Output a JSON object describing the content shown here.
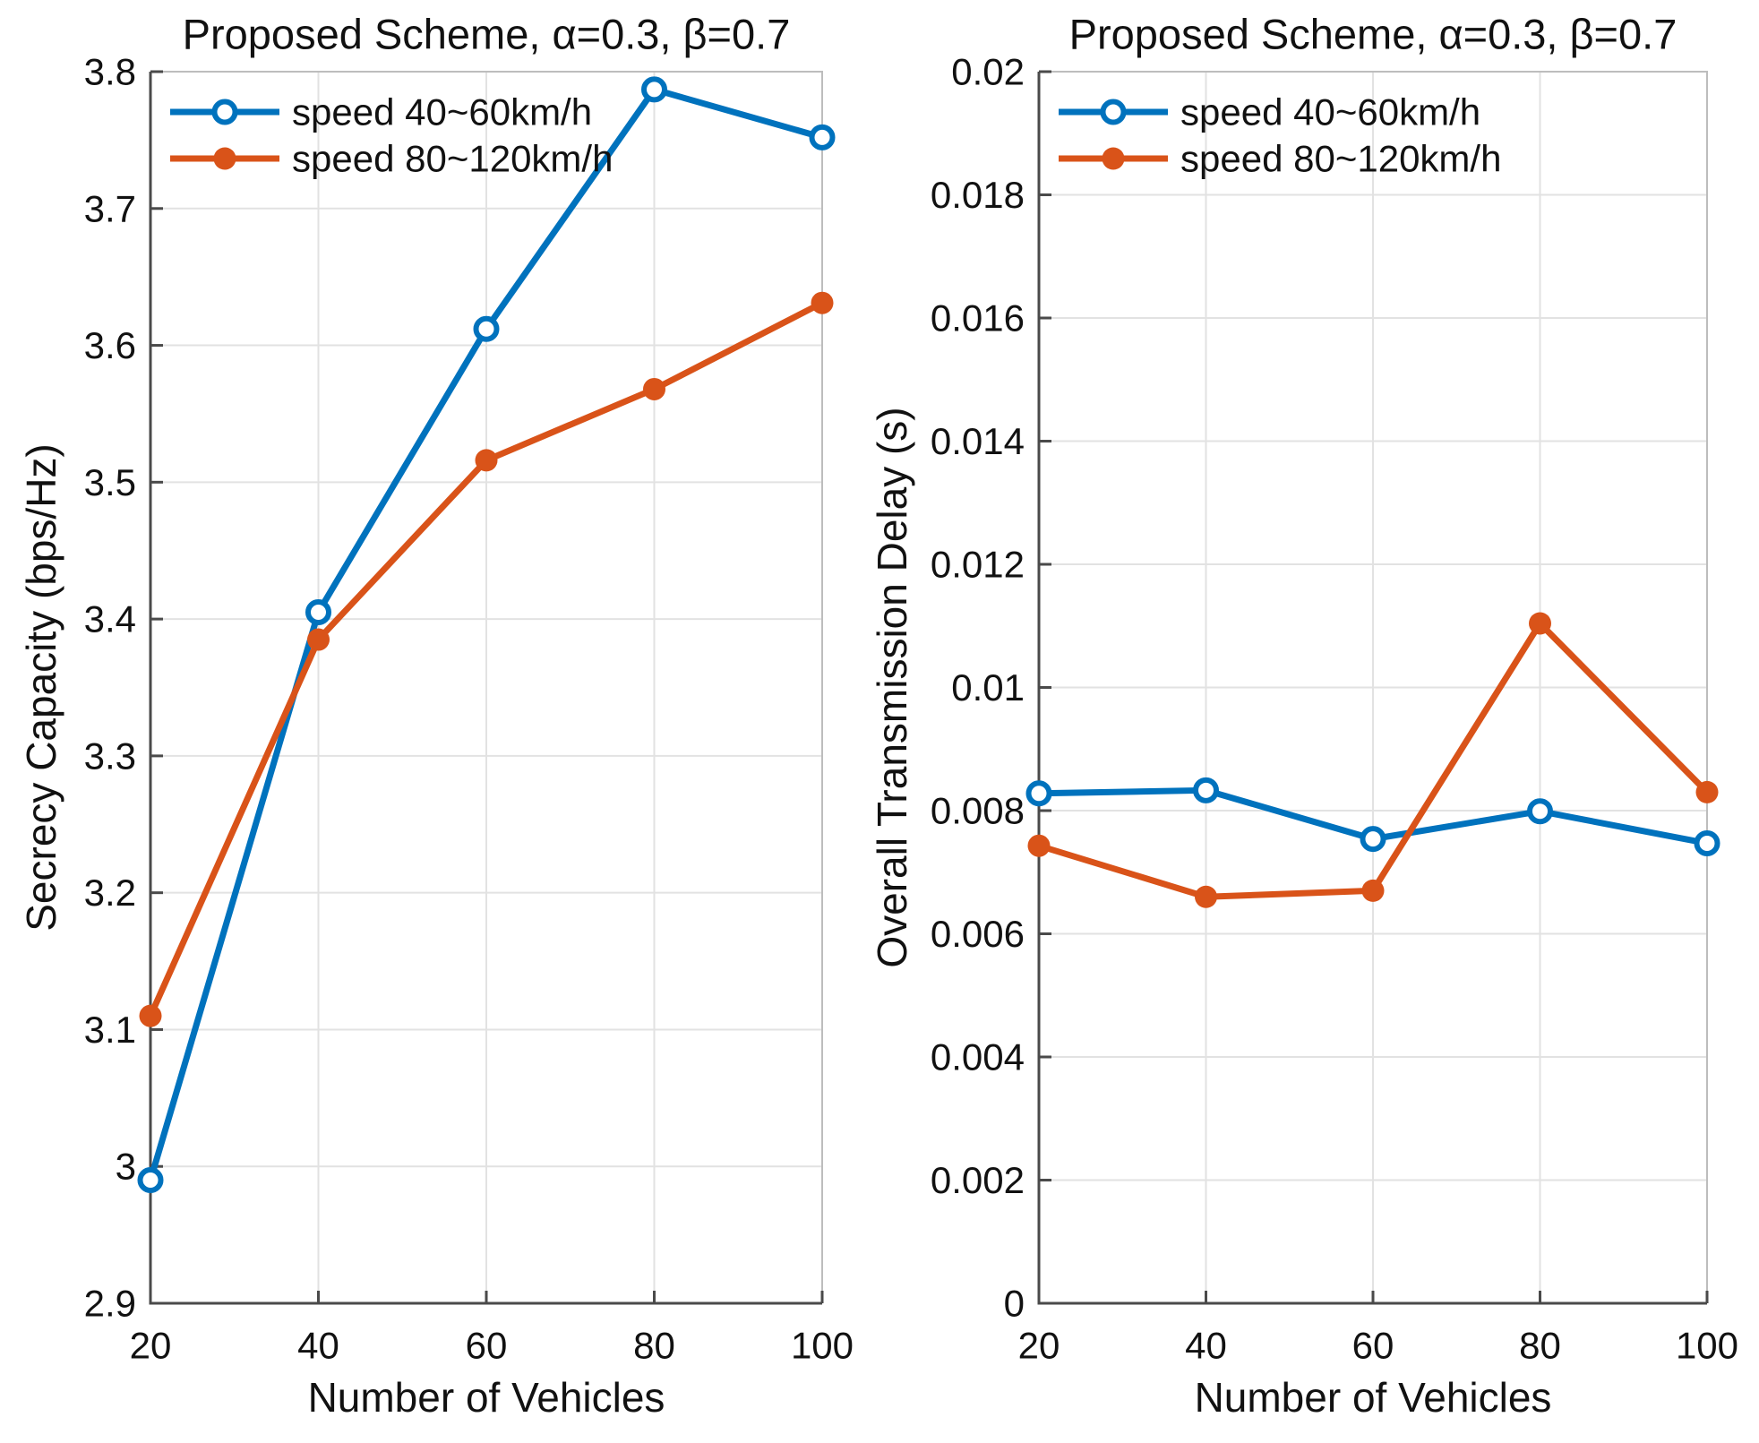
{
  "figure_background": "#ffffff",
  "style_colors": {
    "series_blue": "#0072BD",
    "series_orange": "#D95319",
    "grid_line": "#e2e2e2",
    "axis_line": "#4a4a4a",
    "box_border": "#bdbdbd",
    "text": "#111111"
  },
  "chart_data": [
    {
      "type": "line",
      "title": "Proposed Scheme, α=0.3, β=0.7",
      "xlabel": "Number of Vehicles",
      "ylabel": "Secrecy Capacity (bps/Hz)",
      "x": [
        20,
        40,
        60,
        80,
        100
      ],
      "xlim": [
        20,
        100
      ],
      "ylim": [
        2.9,
        3.8
      ],
      "xtick_labels": [
        "20",
        "40",
        "60",
        "80",
        "100"
      ],
      "ytick_values": [
        2.9,
        3,
        3.1,
        3.2,
        3.3,
        3.4,
        3.5,
        3.6,
        3.7,
        3.8
      ],
      "ytick_labels": [
        "2.9",
        "3",
        "3.1",
        "3.2",
        "3.3",
        "3.4",
        "3.5",
        "3.6",
        "3.7",
        "3.8"
      ],
      "grid": true,
      "legend_position": "top-left",
      "series": [
        {
          "name": "speed 40~60km/h",
          "color": "#0072BD",
          "marker": "open-circle",
          "values": [
            2.99,
            3.405,
            3.612,
            3.787,
            3.752
          ]
        },
        {
          "name": "speed 80~120km/h",
          "color": "#D95319",
          "marker": "filled-circle",
          "values": [
            3.11,
            3.385,
            3.516,
            3.568,
            3.631
          ]
        }
      ]
    },
    {
      "type": "line",
      "title": "Proposed Scheme, α=0.3, β=0.7",
      "xlabel": "Number of Vehicles",
      "ylabel": "Overall Transmission Delay (s)",
      "x": [
        20,
        40,
        60,
        80,
        100
      ],
      "xlim": [
        20,
        100
      ],
      "ylim": [
        0,
        0.02
      ],
      "xtick_labels": [
        "20",
        "40",
        "60",
        "80",
        "100"
      ],
      "ytick_values": [
        0,
        0.002,
        0.004,
        0.006,
        0.008,
        0.01,
        0.012,
        0.014,
        0.016,
        0.018,
        0.02
      ],
      "ytick_labels": [
        "0",
        "0.002",
        "0.004",
        "0.006",
        "0.008",
        "0.01",
        "0.012",
        "0.014",
        "0.016",
        "0.018",
        "0.02"
      ],
      "grid": true,
      "legend_position": "top-left",
      "series": [
        {
          "name": "speed 40~60km/h",
          "color": "#0072BD",
          "marker": "open-circle",
          "values": [
            0.00828,
            0.00833,
            0.00754,
            0.00799,
            0.00747
          ]
        },
        {
          "name": "speed 80~120km/h",
          "color": "#D95319",
          "marker": "filled-circle",
          "values": [
            0.00743,
            0.0066,
            0.0067,
            0.01104,
            0.0083
          ]
        }
      ]
    }
  ]
}
